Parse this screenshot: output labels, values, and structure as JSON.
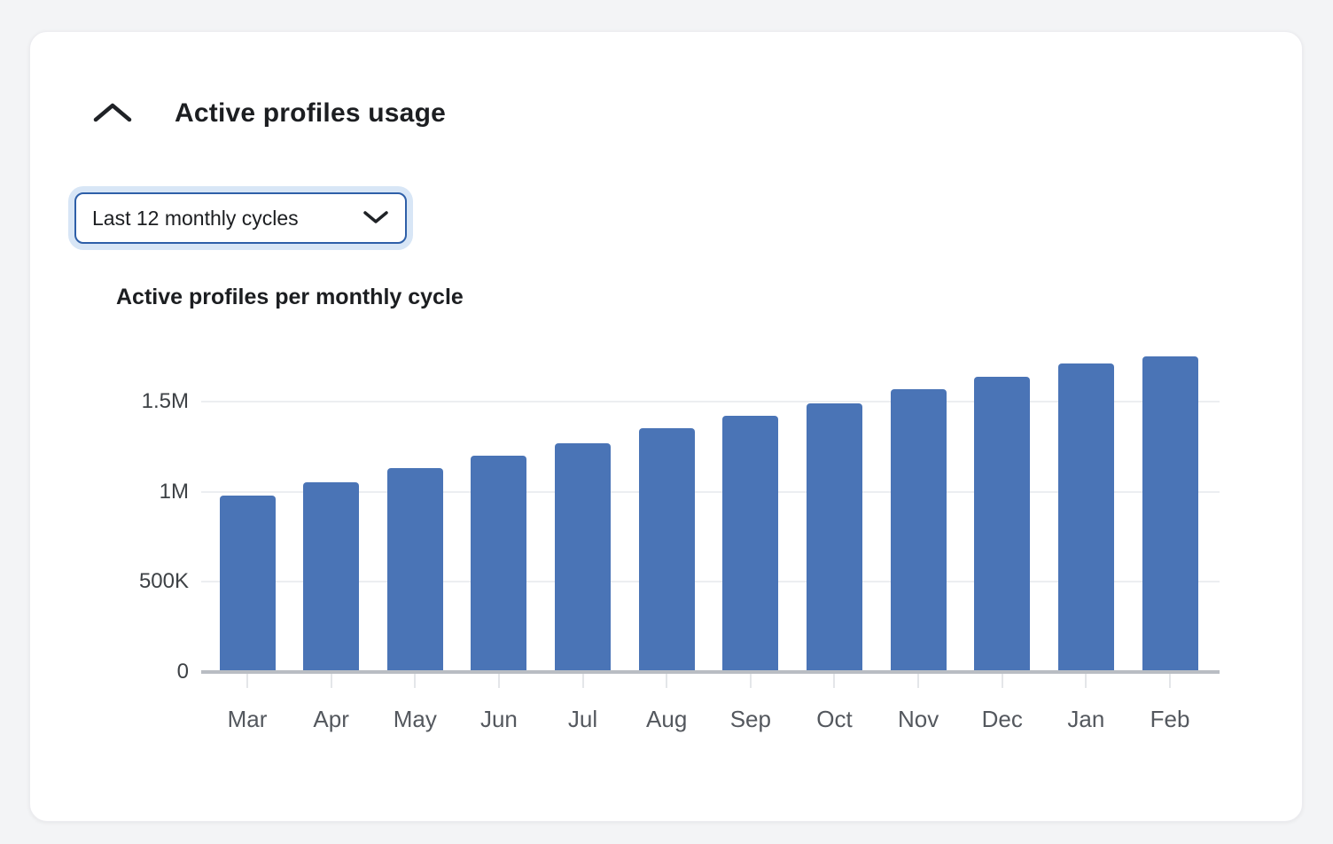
{
  "card": {
    "title": "Active profiles usage",
    "collapse_icon": "chevron-up"
  },
  "filter_dropdown": {
    "value": "Last 12 monthly cycles",
    "icon": "chevron-down"
  },
  "chart_data": {
    "type": "bar",
    "title": "Active profiles per monthly cycle",
    "categories": [
      "Mar",
      "Apr",
      "May",
      "Jun",
      "Jul",
      "Aug",
      "Sep",
      "Oct",
      "Nov",
      "Dec",
      "Jan",
      "Feb"
    ],
    "values": [
      980000,
      1050000,
      1130000,
      1200000,
      1270000,
      1350000,
      1420000,
      1490000,
      1570000,
      1640000,
      1710000,
      1750000
    ],
    "yticks": [
      {
        "label": "0",
        "value": 0
      },
      {
        "label": "500K",
        "value": 500000
      },
      {
        "label": "1M",
        "value": 1000000
      },
      {
        "label": "1.5M",
        "value": 1500000
      }
    ],
    "ylim": [
      0,
      1770000
    ],
    "xlabel": "",
    "ylabel": "",
    "grid": true,
    "legend": false,
    "bar_color": "#4a74b6"
  },
  "colors": {
    "page_bg": "#f3f4f6",
    "card_bg": "#ffffff",
    "bar": "#4a74b6",
    "dropdown_border": "#2e5fa8",
    "dropdown_glow": "#d8e6f6",
    "gridline": "#eceef1",
    "axis_line": "#b9bdc3"
  }
}
